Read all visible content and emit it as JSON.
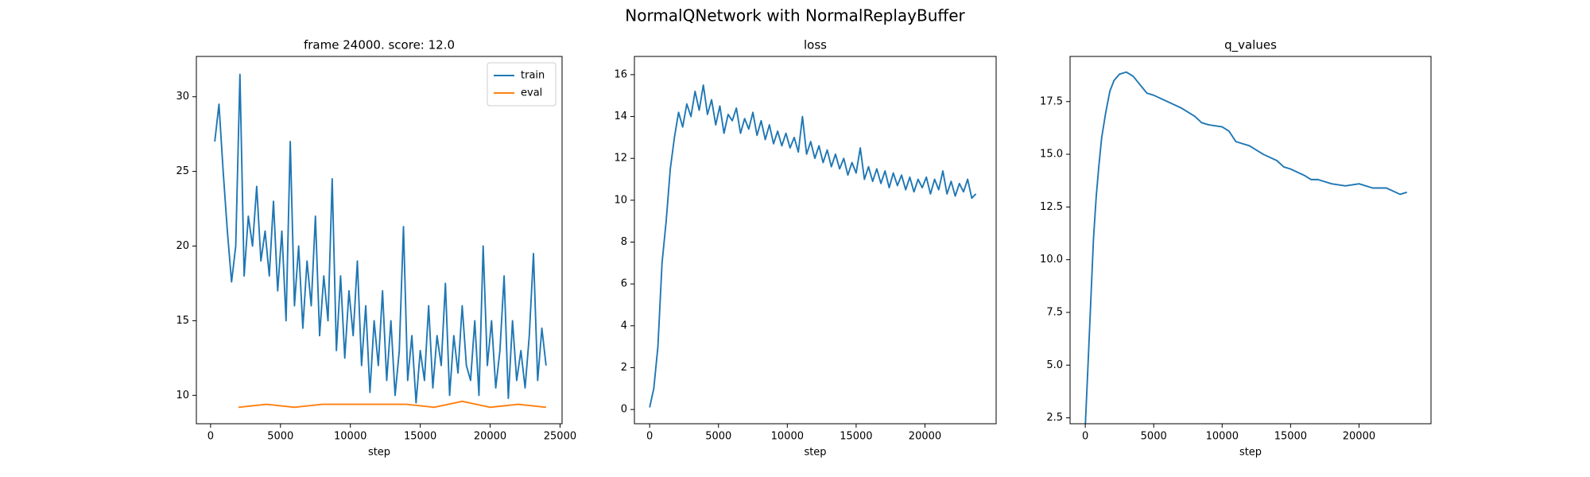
{
  "title": "NormalQNetwork with NormalReplayBuffer",
  "chart_data": [
    {
      "type": "line",
      "title": "frame 24000. score: 12.0",
      "xlabel": "step",
      "xlim": [
        -1017,
        25145
      ],
      "ylim": [
        8.1,
        32.7
      ],
      "xticks": [
        0,
        5000,
        10000,
        15000,
        20000,
        25000
      ],
      "yticks": [
        10,
        15,
        20,
        25,
        30
      ],
      "legend": "upper right",
      "series": [
        {
          "name": "train",
          "color": "#1f77b4",
          "x": [
            300,
            600,
            900,
            1200,
            1500,
            1800,
            2100,
            2400,
            2700,
            3000,
            3300,
            3600,
            3900,
            4200,
            4500,
            4800,
            5100,
            5400,
            5700,
            6000,
            6300,
            6600,
            6900,
            7200,
            7500,
            7800,
            8100,
            8400,
            8700,
            9000,
            9300,
            9600,
            9900,
            10200,
            10500,
            10800,
            11100,
            11400,
            11700,
            12000,
            12300,
            12600,
            12900,
            13200,
            13500,
            13800,
            14100,
            14400,
            14700,
            15000,
            15300,
            15600,
            15900,
            16200,
            16500,
            16800,
            17100,
            17400,
            17700,
            18000,
            18300,
            18600,
            18900,
            19200,
            19500,
            19800,
            20100,
            20400,
            20700,
            21000,
            21300,
            21600,
            21900,
            22200,
            22500,
            22800,
            23100,
            23400,
            23700,
            24000
          ],
          "values": [
            27,
            29.5,
            25,
            21,
            17.6,
            20,
            31.5,
            18,
            22,
            20,
            24,
            19,
            21,
            18,
            23,
            17,
            21,
            15,
            27,
            16,
            20,
            14.5,
            19,
            16,
            22,
            14,
            18,
            15,
            24.5,
            13,
            18,
            12.5,
            17,
            14,
            19,
            12,
            16,
            10.2,
            15,
            12,
            17,
            11,
            15,
            10,
            13,
            21.3,
            11,
            14,
            9.5,
            13,
            11,
            16,
            10.5,
            14,
            12,
            17.5,
            10,
            14,
            11.5,
            16,
            12,
            11,
            15,
            10,
            20,
            12,
            15,
            10.5,
            13,
            18,
            9.8,
            15,
            11,
            13,
            10.5,
            14,
            19.5,
            11,
            14.5,
            12
          ]
        },
        {
          "name": "eval",
          "color": "#ff7f0e",
          "x": [
            2000,
            4000,
            6000,
            8000,
            10000,
            12000,
            14000,
            16000,
            18000,
            20000,
            22000,
            24000
          ],
          "values": [
            9.2,
            9.4,
            9.2,
            9.4,
            9.4,
            9.4,
            9.4,
            9.2,
            9.6,
            9.2,
            9.4,
            9.2
          ]
        }
      ]
    },
    {
      "type": "line",
      "title": "loss",
      "xlabel": "step",
      "xlim": [
        -1107,
        25170
      ],
      "ylim": [
        -0.68,
        16.87
      ],
      "xticks": [
        0,
        5000,
        10000,
        15000,
        20000
      ],
      "yticks": [
        0,
        2,
        4,
        6,
        8,
        10,
        12,
        14,
        16
      ],
      "series": [
        {
          "color": "#1f77b4",
          "x": [
            0,
            300,
            600,
            900,
            1200,
            1500,
            1800,
            2100,
            2400,
            2700,
            3000,
            3300,
            3600,
            3900,
            4200,
            4500,
            4800,
            5100,
            5400,
            5700,
            6000,
            6300,
            6600,
            6900,
            7200,
            7500,
            7800,
            8100,
            8400,
            8700,
            9000,
            9300,
            9600,
            9900,
            10200,
            10500,
            10800,
            11100,
            11400,
            11700,
            12000,
            12300,
            12600,
            12900,
            13200,
            13500,
            13800,
            14100,
            14400,
            14700,
            15000,
            15300,
            15600,
            15900,
            16200,
            16500,
            16800,
            17100,
            17400,
            17700,
            18000,
            18300,
            18600,
            18900,
            19200,
            19500,
            19800,
            20100,
            20400,
            20700,
            21000,
            21300,
            21600,
            21900,
            22200,
            22500,
            22800,
            23100,
            23400,
            23700
          ],
          "values": [
            0.1,
            1,
            3,
            7,
            9,
            11.5,
            13,
            14.2,
            13.5,
            14.6,
            14,
            15.2,
            14.3,
            15.5,
            14.1,
            14.8,
            13.6,
            14.5,
            13.2,
            14.1,
            13.8,
            14.4,
            13.2,
            13.9,
            13.4,
            14.2,
            13.1,
            13.8,
            12.9,
            13.6,
            12.7,
            13.3,
            12.6,
            13.2,
            12.5,
            13.0,
            12.3,
            14.0,
            12.2,
            12.8,
            12.0,
            12.6,
            11.8,
            12.4,
            11.6,
            12.2,
            11.5,
            12.0,
            11.2,
            11.8,
            11.3,
            12.5,
            11.0,
            11.6,
            10.9,
            11.5,
            10.8,
            11.4,
            10.6,
            11.3,
            10.7,
            11.2,
            10.5,
            11.1,
            10.4,
            11.0,
            10.6,
            11.1,
            10.3,
            11.0,
            10.5,
            11.4,
            10.3,
            10.9,
            10.2,
            10.8,
            10.4,
            11.0,
            10.1,
            10.3
          ]
        }
      ]
    },
    {
      "type": "line",
      "title": "q_values",
      "xlabel": "step",
      "xlim": [
        -1111,
        25259
      ],
      "ylim": [
        2.22,
        19.64
      ],
      "xticks": [
        0,
        5000,
        10000,
        15000,
        20000
      ],
      "yticks": [
        {
          "value": 2.5,
          "label": "2.5"
        },
        {
          "value": 5,
          "label": "5.0"
        },
        {
          "value": 7.5,
          "label": "7.5"
        },
        {
          "value": 10,
          "label": "10.0"
        },
        {
          "value": 12.5,
          "label": "12.5"
        },
        {
          "value": 15,
          "label": "15.0"
        },
        {
          "value": 17.5,
          "label": "17.5"
        }
      ],
      "series": [
        {
          "color": "#1f77b4",
          "x": [
            0,
            200,
            400,
            600,
            800,
            1000,
            1200,
            1500,
            1800,
            2100,
            2500,
            3000,
            3500,
            4000,
            4500,
            5000,
            6000,
            7000,
            8000,
            8500,
            9000,
            10000,
            10500,
            11000,
            12000,
            13000,
            14000,
            14500,
            15000,
            16000,
            16500,
            17000,
            18000,
            19000,
            20000,
            21000,
            22000,
            23000,
            23500
          ],
          "values": [
            2.1,
            5,
            8,
            11,
            13,
            14.5,
            15.8,
            17,
            18,
            18.5,
            18.8,
            18.9,
            18.7,
            18.3,
            17.9,
            17.8,
            17.5,
            17.2,
            16.8,
            16.5,
            16.4,
            16.3,
            16.1,
            15.6,
            15.4,
            15.0,
            14.7,
            14.4,
            14.3,
            14.0,
            13.8,
            13.8,
            13.6,
            13.5,
            13.6,
            13.4,
            13.4,
            13.1,
            13.2
          ]
        }
      ]
    }
  ]
}
